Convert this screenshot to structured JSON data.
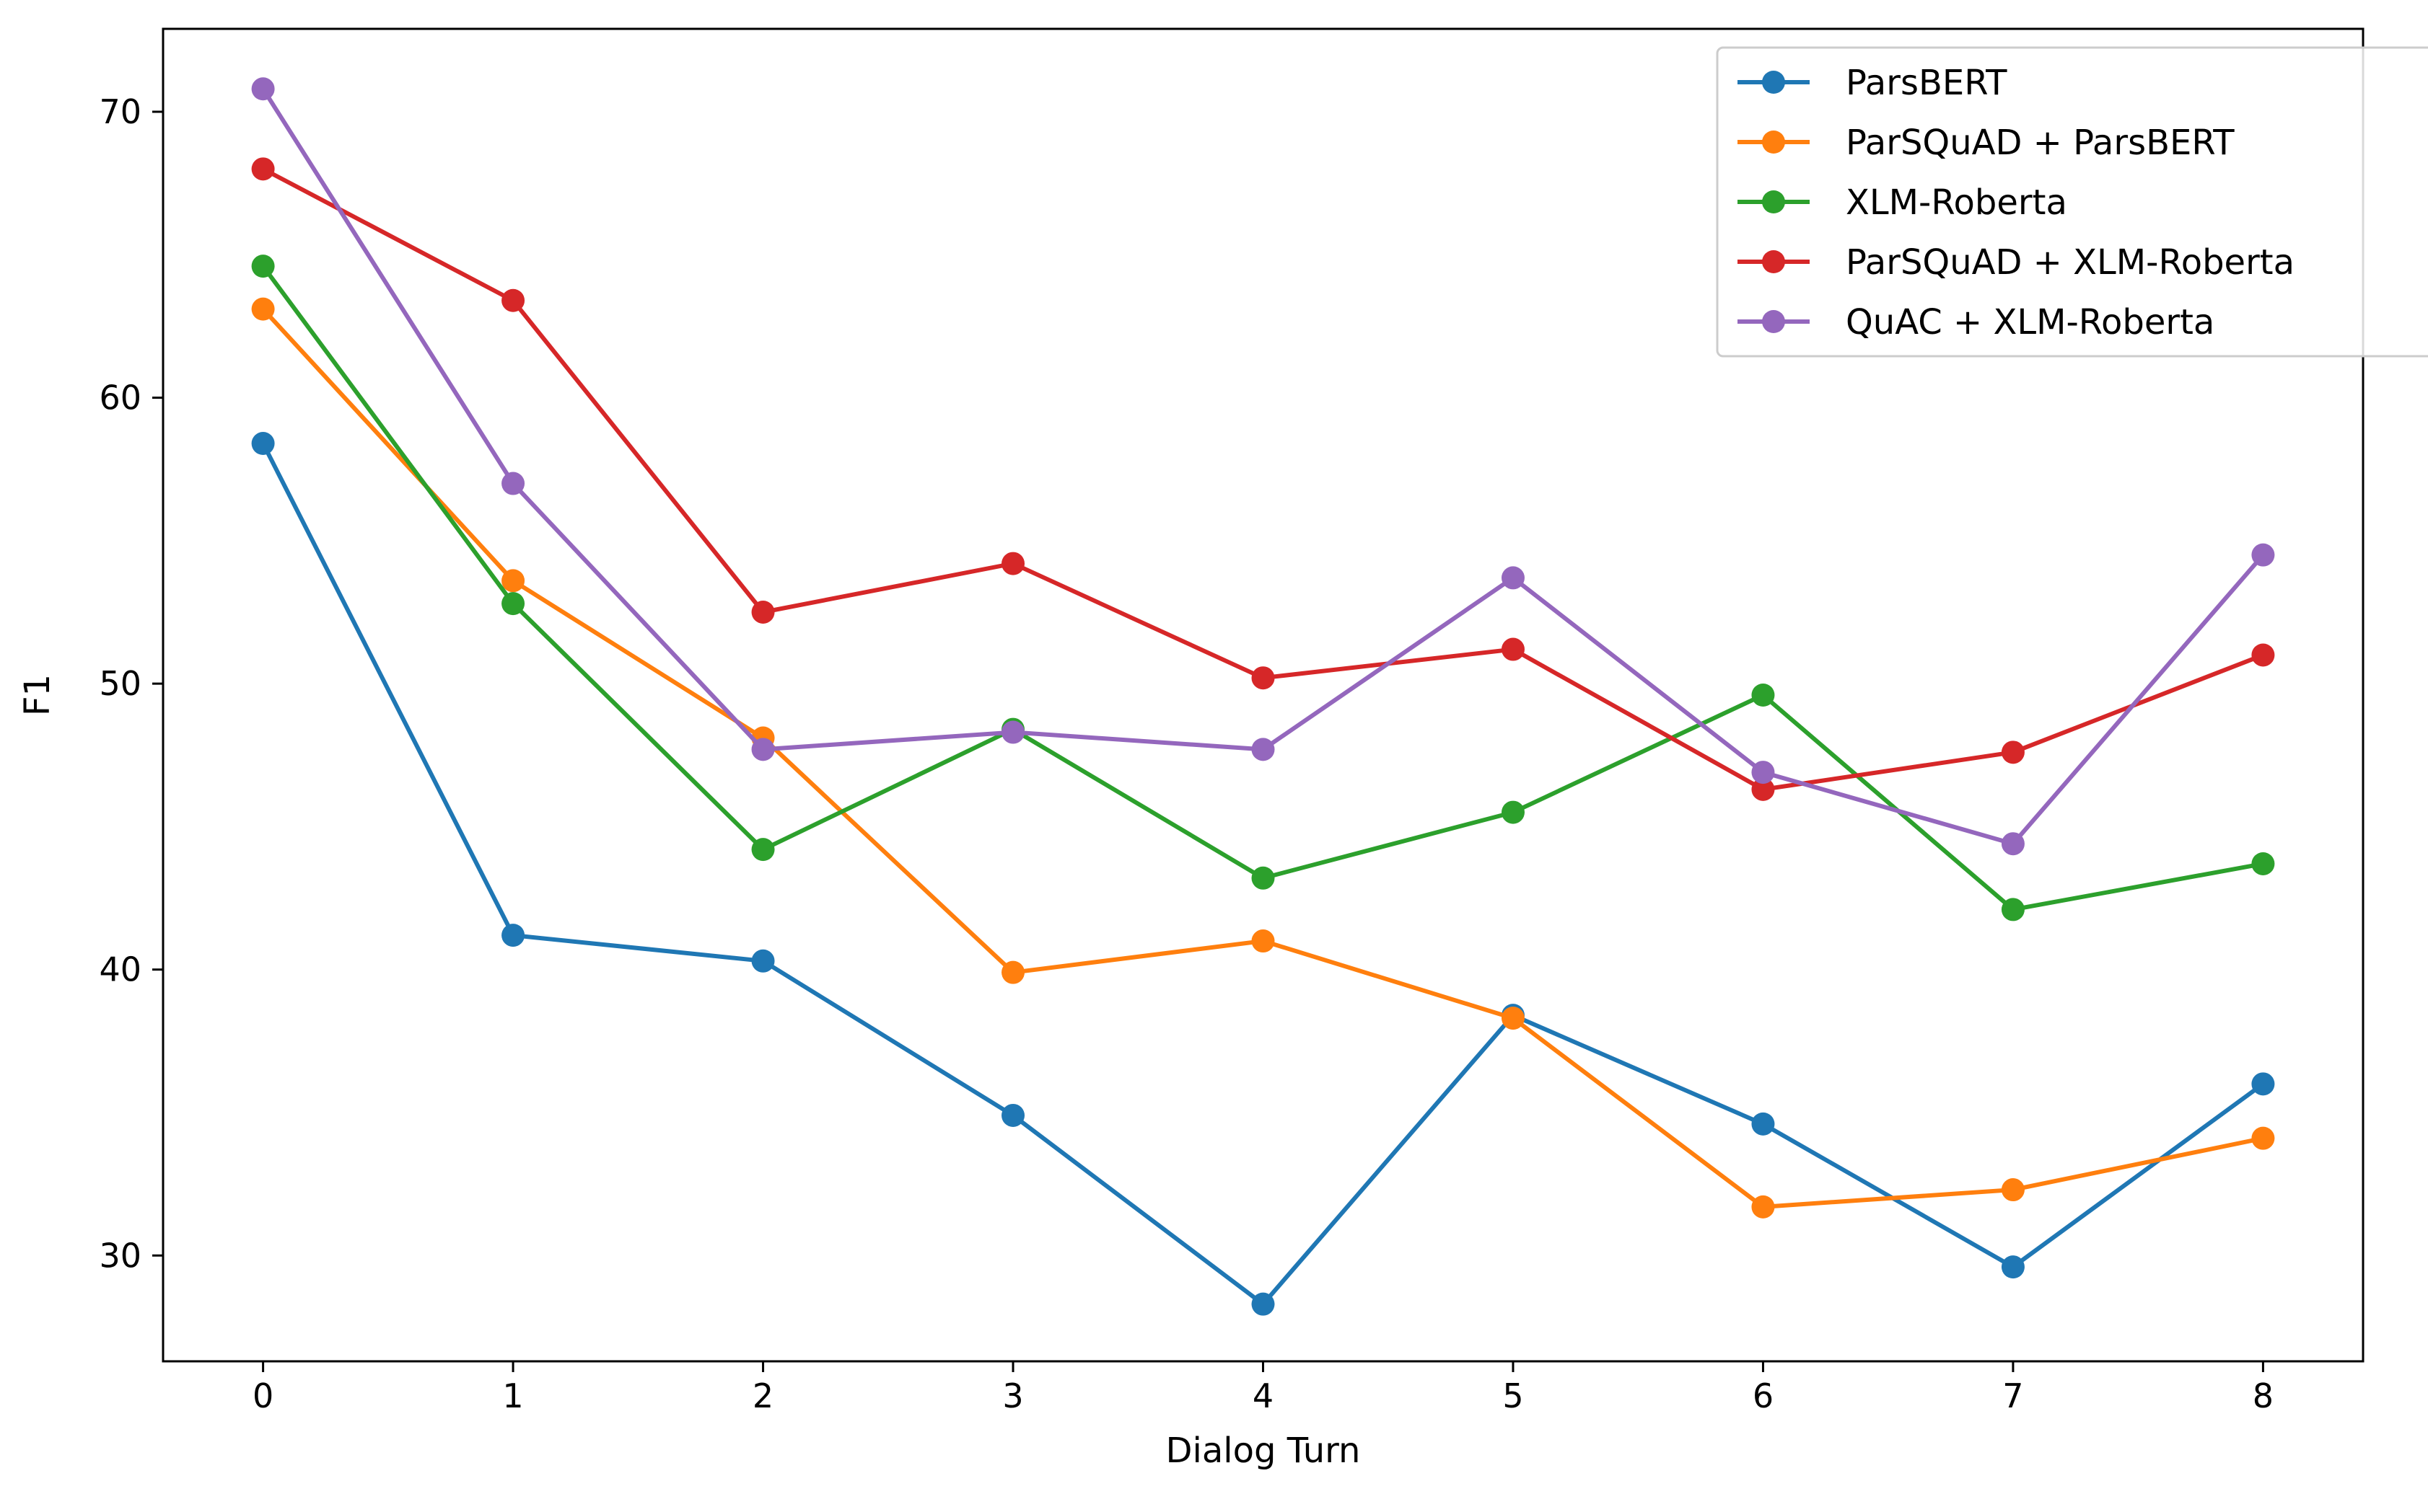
{
  "chart_data": {
    "type": "line",
    "title": "",
    "xlabel": "Dialog Turn",
    "ylabel": "F1",
    "x": [
      0,
      1,
      2,
      3,
      4,
      5,
      6,
      7,
      8
    ],
    "xlim": [
      -0.4,
      8.4
    ],
    "ylim": [
      26.3,
      72.9
    ],
    "yticks": [
      30,
      40,
      50,
      60,
      70
    ],
    "grid": false,
    "legend": "top-right",
    "series": [
      {
        "name": "ParsBERT",
        "color": "#1f77b4",
        "values": [
          58.4,
          41.2,
          40.3,
          34.9,
          28.3,
          38.4,
          34.6,
          29.6,
          36.0
        ]
      },
      {
        "name": "ParSQuAD + ParsBERT",
        "color": "#ff7f0e",
        "values": [
          63.1,
          53.6,
          48.1,
          39.9,
          41.0,
          38.3,
          31.7,
          32.3,
          34.1
        ]
      },
      {
        "name": "XLM-Roberta",
        "color": "#2ca02c",
        "values": [
          64.6,
          52.8,
          44.2,
          48.4,
          43.2,
          45.5,
          49.6,
          42.1,
          43.7
        ]
      },
      {
        "name": "ParSQuAD + XLM-Roberta",
        "color": "#d62728",
        "values": [
          68.0,
          63.4,
          52.5,
          54.2,
          50.2,
          51.2,
          46.3,
          47.6,
          51.0
        ]
      },
      {
        "name": "QuAC + XLM-Roberta",
        "color": "#9467bd",
        "values": [
          70.8,
          57.0,
          47.7,
          48.3,
          47.7,
          53.7,
          46.9,
          44.4,
          54.5
        ]
      }
    ]
  }
}
